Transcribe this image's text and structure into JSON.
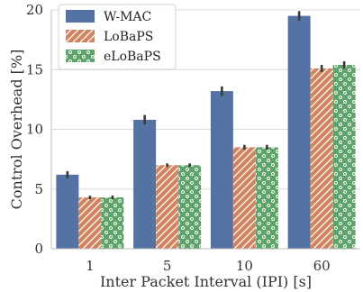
{
  "chart_data": {
    "type": "bar",
    "xlabel": "Inter Packet Interval (IPI) [s]",
    "ylabel": "Control Overhead [%]",
    "categories": [
      "1",
      "5",
      "10",
      "60"
    ],
    "ylim": [
      0,
      20
    ],
    "yticks": [
      0,
      5,
      10,
      15,
      20
    ],
    "grid": "horizontal",
    "legend_position": "top-left",
    "series": [
      {
        "name": "W-MAC",
        "values": [
          6.2,
          10.8,
          13.2,
          19.5
        ],
        "errors": [
          0.3,
          0.4,
          0.4,
          0.4
        ],
        "color": "#5572a4",
        "pattern": "solid"
      },
      {
        "name": "LoBaPS",
        "values": [
          4.3,
          7.0,
          8.5,
          15.1
        ],
        "errors": [
          0.15,
          0.15,
          0.2,
          0.3
        ],
        "color": "#d18461",
        "pattern": "hatch"
      },
      {
        "name": "eLoBaPS",
        "values": [
          4.3,
          7.0,
          8.5,
          15.4
        ],
        "errors": [
          0.15,
          0.15,
          0.2,
          0.3
        ],
        "color": "#5ea46a",
        "pattern": "dots"
      }
    ]
  }
}
